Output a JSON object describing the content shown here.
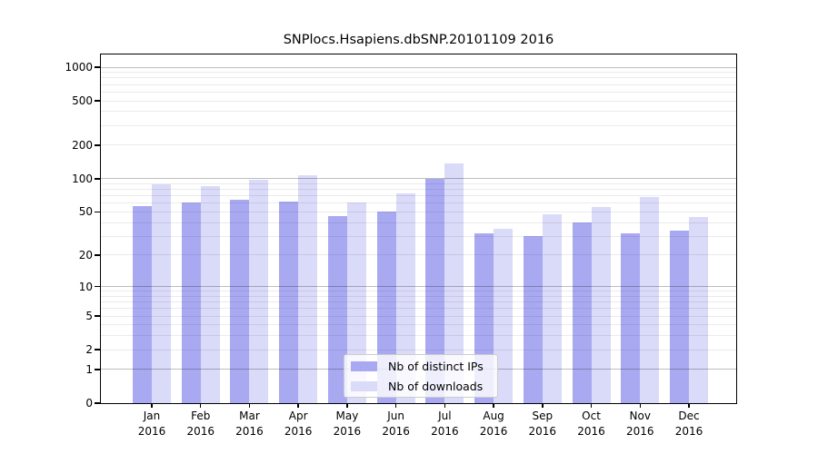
{
  "figure": {
    "background": "#ffffff"
  },
  "chart_data": {
    "type": "bar",
    "title": "SNPlocs.Hsapiens.dbSNP.20101109 2016",
    "x_months": [
      "Jan",
      "Feb",
      "Mar",
      "Apr",
      "May",
      "Jun",
      "Jul",
      "Aug",
      "Sep",
      "Oct",
      "Nov",
      "Dec"
    ],
    "x_year": "2016",
    "series": [
      {
        "name": "Nb of distinct IPs",
        "color": "#a9a9f2",
        "values": [
          56,
          61,
          64,
          62,
          46,
          50,
          100,
          32,
          30,
          40,
          32,
          34
        ]
      },
      {
        "name": "Nb of downloads",
        "color": "#dadaf9",
        "values": [
          89,
          85,
          98,
          108,
          61,
          74,
          137,
          35,
          48,
          55,
          68,
          45
        ]
      }
    ],
    "y_scale": "log1p",
    "y_ticks": [
      0,
      1,
      2,
      5,
      10,
      20,
      50,
      100,
      200,
      500,
      1000
    ],
    "y_major_gridlines": [
      1,
      10,
      100,
      1000
    ],
    "ylim": [
      0,
      1300
    ],
    "grid": true,
    "grid_above_bars": true,
    "legend_position": "lower center",
    "colors": {
      "spine": "#000000",
      "major_grid": "rgba(0,0,0,0.26)",
      "minor_grid": "rgba(0,0,0,0.08)"
    }
  }
}
